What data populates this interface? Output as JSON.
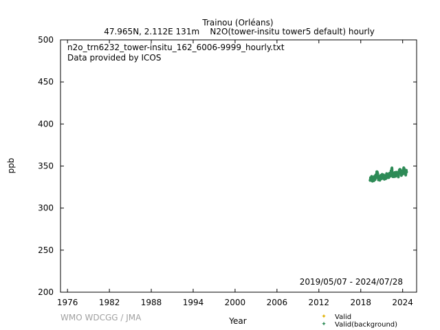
{
  "chart_data": {
    "type": "scatter",
    "title": "Trainou (Orléans)",
    "subtitle": "47.965N, 2.112E 131m    N2O(tower-insitu tower5 default) hourly",
    "file_label": "n2o_trn6232_tower-insitu_162_6006-9999_hourly.txt",
    "provider": "Data provided by ICOS",
    "date_range": "2019/05/07 - 2024/07/28",
    "xlabel": "Year",
    "ylabel": "ppb",
    "xlim": [
      1975,
      2026
    ],
    "ylim": [
      200,
      500
    ],
    "x_ticks": [
      1976,
      1982,
      1988,
      1994,
      2000,
      2006,
      2012,
      2018,
      2024
    ],
    "y_ticks": [
      200,
      250,
      300,
      350,
      400,
      450,
      500
    ],
    "grid": false,
    "legend_position": "bottom-right",
    "watermark": "WMO WDCGG / JMA",
    "series": [
      {
        "name": "Valid",
        "color": "#e0b000",
        "values": []
      },
      {
        "name": "Valid(background)",
        "color": "#2e8b57",
        "values": [
          [
            2019.35,
            333
          ],
          [
            2019.5,
            336
          ],
          [
            2019.7,
            334
          ],
          [
            2019.9,
            335
          ],
          [
            2020.05,
            336
          ],
          [
            2020.2,
            338
          ],
          [
            2020.35,
            343
          ],
          [
            2020.5,
            336
          ],
          [
            2020.7,
            335
          ],
          [
            2020.9,
            337
          ],
          [
            2021.1,
            338
          ],
          [
            2021.3,
            337
          ],
          [
            2021.5,
            336
          ],
          [
            2021.7,
            339
          ],
          [
            2021.9,
            338
          ],
          [
            2022.1,
            339
          ],
          [
            2022.3,
            341
          ],
          [
            2022.45,
            347
          ],
          [
            2022.6,
            338
          ],
          [
            2022.8,
            340
          ],
          [
            2023.0,
            340
          ],
          [
            2023.2,
            341
          ],
          [
            2023.4,
            339
          ],
          [
            2023.6,
            346
          ],
          [
            2023.8,
            341
          ],
          [
            2024.0,
            342
          ],
          [
            2024.2,
            347
          ],
          [
            2024.4,
            341
          ],
          [
            2024.55,
            343
          ]
        ]
      }
    ]
  }
}
